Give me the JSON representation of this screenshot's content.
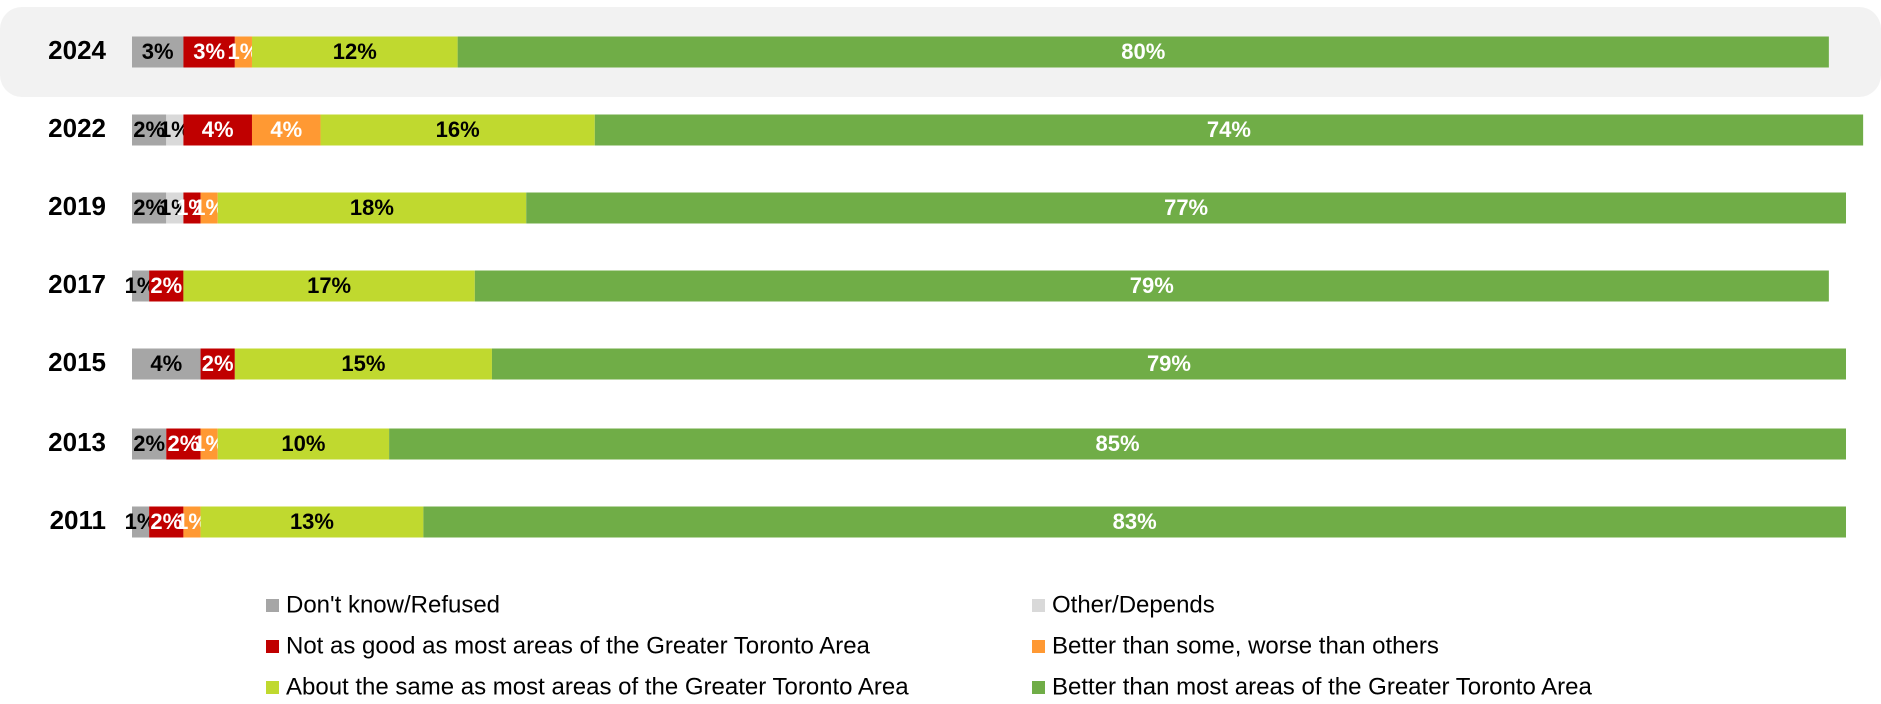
{
  "chart_data": {
    "type": "stacked_bar_horizontal",
    "categories": [
      "2024",
      "2022",
      "2019",
      "2017",
      "2015",
      "2013",
      "2011"
    ],
    "xlim": [
      0,
      100
    ],
    "series": [
      {
        "name": "Don't know/Refused",
        "color": "#a6a6a6",
        "label_color": "#000000",
        "values": [
          3,
          2,
          2,
          1,
          4,
          2,
          1
        ],
        "value_labels": [
          "3%",
          "2%",
          "2%",
          "1%",
          "4%",
          "2%",
          "1%"
        ]
      },
      {
        "name": "Other/Depends",
        "color": "#d9d9d9",
        "label_color": "#000000",
        "values": [
          null,
          1,
          1,
          null,
          null,
          null,
          null
        ],
        "value_labels": [
          null,
          "1%",
          "1%",
          null,
          null,
          null,
          null
        ]
      },
      {
        "name": "Not as good as most areas of the Greater Toronto Area",
        "color": "#c00000",
        "label_color": "#ffffff",
        "values": [
          3,
          4,
          1,
          2,
          2,
          2,
          2
        ],
        "value_labels": [
          "3%",
          "4%",
          "1%",
          "2%",
          "2%",
          "2%",
          "2%"
        ]
      },
      {
        "name": "Better than some, worse than others",
        "color": "#ff9933",
        "label_color": "#ffffff",
        "values": [
          1,
          4,
          1,
          null,
          null,
          1,
          1
        ],
        "value_labels": [
          "1%",
          "4%",
          "1%",
          null,
          null,
          "1%",
          "1%"
        ]
      },
      {
        "name": "About the same as most areas of the Greater Toronto Area",
        "color": "#c0d92f",
        "label_color": "#000000",
        "values": [
          12,
          16,
          18,
          17,
          15,
          10,
          13
        ],
        "value_labels": [
          "12%",
          "16%",
          "18%",
          "17%",
          "15%",
          "10%",
          "13%"
        ]
      },
      {
        "name": "Better than most areas of the Greater Toronto Area",
        "color": "#70ad47",
        "label_color": "#ffffff",
        "values": [
          80,
          74,
          77,
          79,
          79,
          85,
          83
        ],
        "value_labels": [
          "80%",
          "74%",
          "77%",
          "79%",
          "79%",
          "85%",
          "83%"
        ]
      }
    ],
    "highlight_category": "2024"
  }
}
